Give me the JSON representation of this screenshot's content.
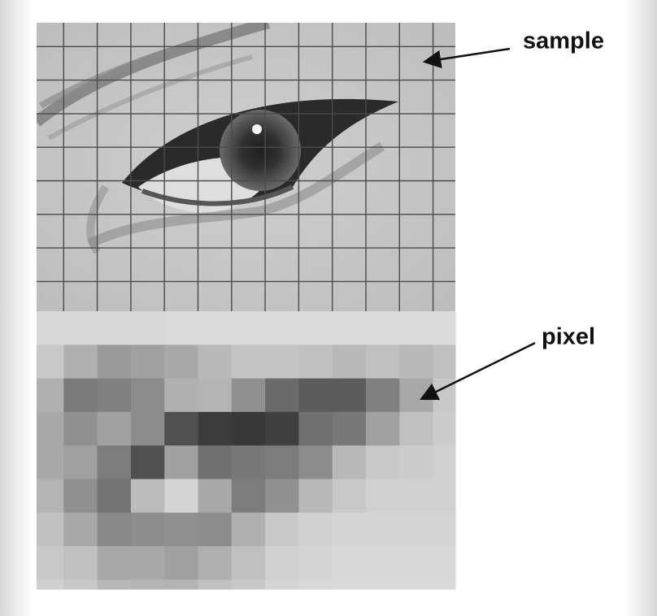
{
  "annotations": [
    {
      "label": "sample"
    },
    {
      "label": "pixel"
    }
  ]
}
